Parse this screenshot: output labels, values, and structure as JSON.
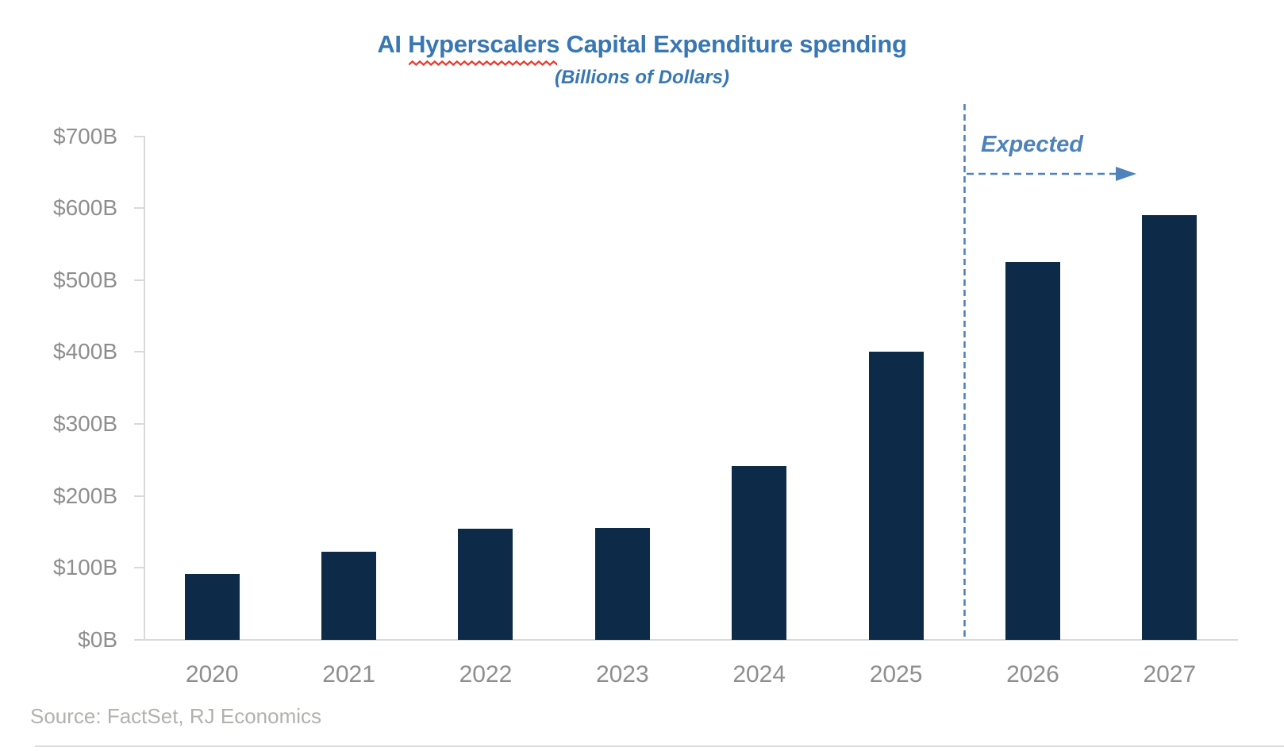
{
  "title": {
    "prefix": "AI ",
    "underlined_word": "Hyperscalers",
    "suffix": " Capital Expenditure spending",
    "full": "AI Hyperscalers Capital Expenditure spending"
  },
  "subtitle": "(Billions of Dollars)",
  "annotation": {
    "label": "Expected"
  },
  "source": "Source: FactSet, RJ Economics",
  "colors": {
    "bar": "#0d2b49",
    "title_blue": "#3877b3",
    "annotation_blue": "#4d82bb",
    "axis_label_gray": "#8e8e8e",
    "axis_line_gray": "#d9d9d9",
    "source_gray": "#b3b1ad",
    "squiggle_red": "#e8392e"
  },
  "chart_data": {
    "type": "bar",
    "title": "AI Hyperscalers Capital Expenditure spending",
    "subtitle": "(Billions of Dollars)",
    "categories": [
      "2020",
      "2021",
      "2022",
      "2023",
      "2024",
      "2025",
      "2026",
      "2027"
    ],
    "values": [
      92,
      123,
      155,
      156,
      242,
      400,
      525,
      590
    ],
    "unit": "Billions of US dollars",
    "ylim": [
      0,
      700
    ],
    "y_ticks": [
      {
        "label": "$0B",
        "value": 0
      },
      {
        "label": "$100B",
        "value": 100
      },
      {
        "label": "$200B",
        "value": 200
      },
      {
        "label": "$300B",
        "value": 300
      },
      {
        "label": "$400B",
        "value": 400
      },
      {
        "label": "$500B",
        "value": 500
      },
      {
        "label": "$600B",
        "value": 600
      },
      {
        "label": "$700B",
        "value": 700
      }
    ],
    "grid": false,
    "legend": false,
    "expected_categories": [
      "2026",
      "2027"
    ],
    "expected_divider_after": "2025",
    "annotation_text": "Expected"
  }
}
